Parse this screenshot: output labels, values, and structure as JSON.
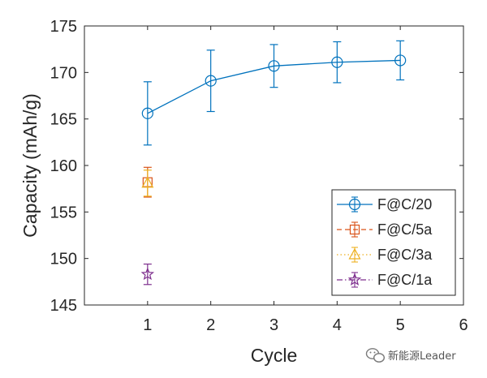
{
  "chart_data": {
    "type": "line",
    "xlabel": "Cycle",
    "ylabel": "Capacity (mAh/g)",
    "xlim": [
      0,
      6
    ],
    "ylim": [
      145,
      175
    ],
    "xticks": [
      1,
      2,
      3,
      4,
      5,
      6
    ],
    "yticks": [
      145,
      150,
      155,
      160,
      165,
      170,
      175
    ],
    "grid": false,
    "legend_position": "bottom-right",
    "series": [
      {
        "name": "F@C/20",
        "color": "#0072BD",
        "marker": "circle",
        "linestyle": "solid",
        "x": [
          1,
          2,
          3,
          4,
          5
        ],
        "y": [
          165.6,
          169.1,
          170.7,
          171.1,
          171.3
        ],
        "error": [
          3.4,
          3.3,
          2.3,
          2.2,
          2.1
        ]
      },
      {
        "name": "F@C/5a",
        "color": "#D95319",
        "marker": "square",
        "linestyle": "dashed",
        "x": [
          1
        ],
        "y": [
          158.2
        ],
        "error": [
          1.6
        ]
      },
      {
        "name": "F@C/3a",
        "color": "#EDB120",
        "marker": "triangle",
        "linestyle": "dotted",
        "x": [
          1
        ],
        "y": [
          158.1
        ],
        "error": [
          1.4
        ]
      },
      {
        "name": "F@C/1a",
        "color": "#7E2F8E",
        "marker": "star",
        "linestyle": "dashdot",
        "x": [
          1
        ],
        "y": [
          148.3
        ],
        "error": [
          1.1
        ]
      }
    ]
  },
  "watermark": {
    "text": "新能源Leader",
    "icon": "wechat-icon"
  }
}
